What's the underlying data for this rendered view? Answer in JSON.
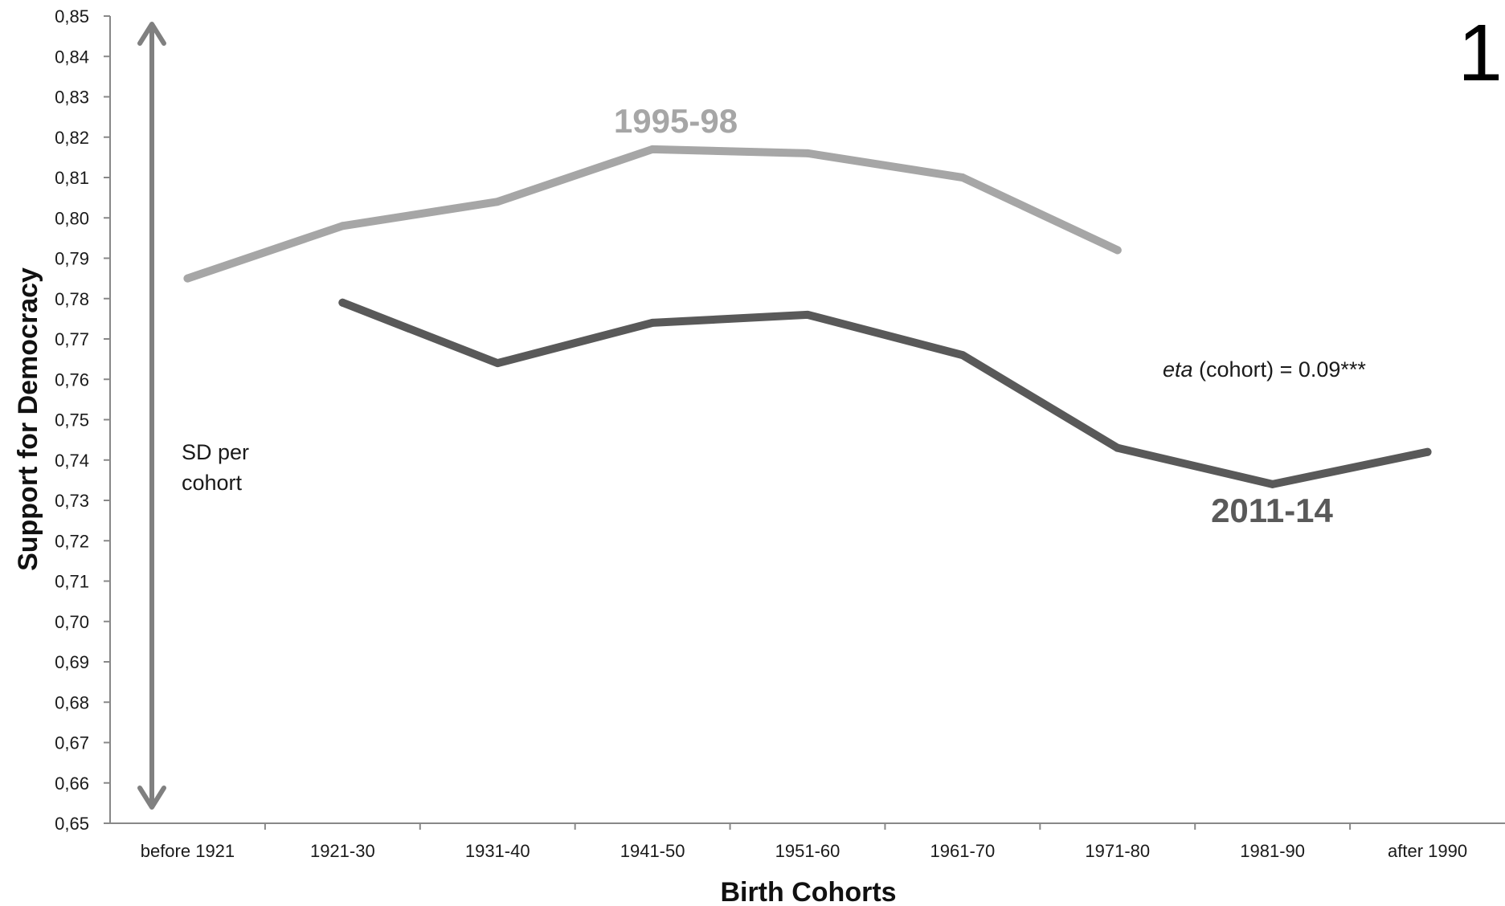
{
  "chart_data": {
    "type": "line",
    "xlabel": "Birth Cohorts",
    "ylabel": "Support for Democracy",
    "ylim": [
      0.65,
      0.85
    ],
    "y_tick_step": 0.01,
    "y_tick_labels": [
      "0,65",
      "0,66",
      "0,67",
      "0,68",
      "0,69",
      "0,70",
      "0,71",
      "0,72",
      "0,73",
      "0,74",
      "0,75",
      "0,76",
      "0,77",
      "0,78",
      "0,79",
      "0,80",
      "0,81",
      "0,82",
      "0,83",
      "0,84",
      "0,85"
    ],
    "categories": [
      "before 1921",
      "1921-30",
      "1931-40",
      "1941-50",
      "1951-60",
      "1961-70",
      "1971-80",
      "1981-90",
      "after 1990"
    ],
    "series": [
      {
        "name": "1995-98",
        "color": "#a6a6a6",
        "values": [
          0.785,
          0.798,
          0.804,
          0.817,
          0.816,
          0.81,
          0.792,
          null,
          null
        ]
      },
      {
        "name": "2011-14",
        "color": "#595959",
        "values": [
          null,
          0.779,
          0.764,
          0.774,
          0.776,
          0.766,
          0.743,
          0.734,
          0.742
        ]
      }
    ],
    "annotations": {
      "sd_label": "SD per cohort",
      "eta_italic": "eta",
      "eta_rest": " (cohort) = 0.09***",
      "panel_number": "1"
    },
    "grid": false,
    "legend": "none"
  }
}
